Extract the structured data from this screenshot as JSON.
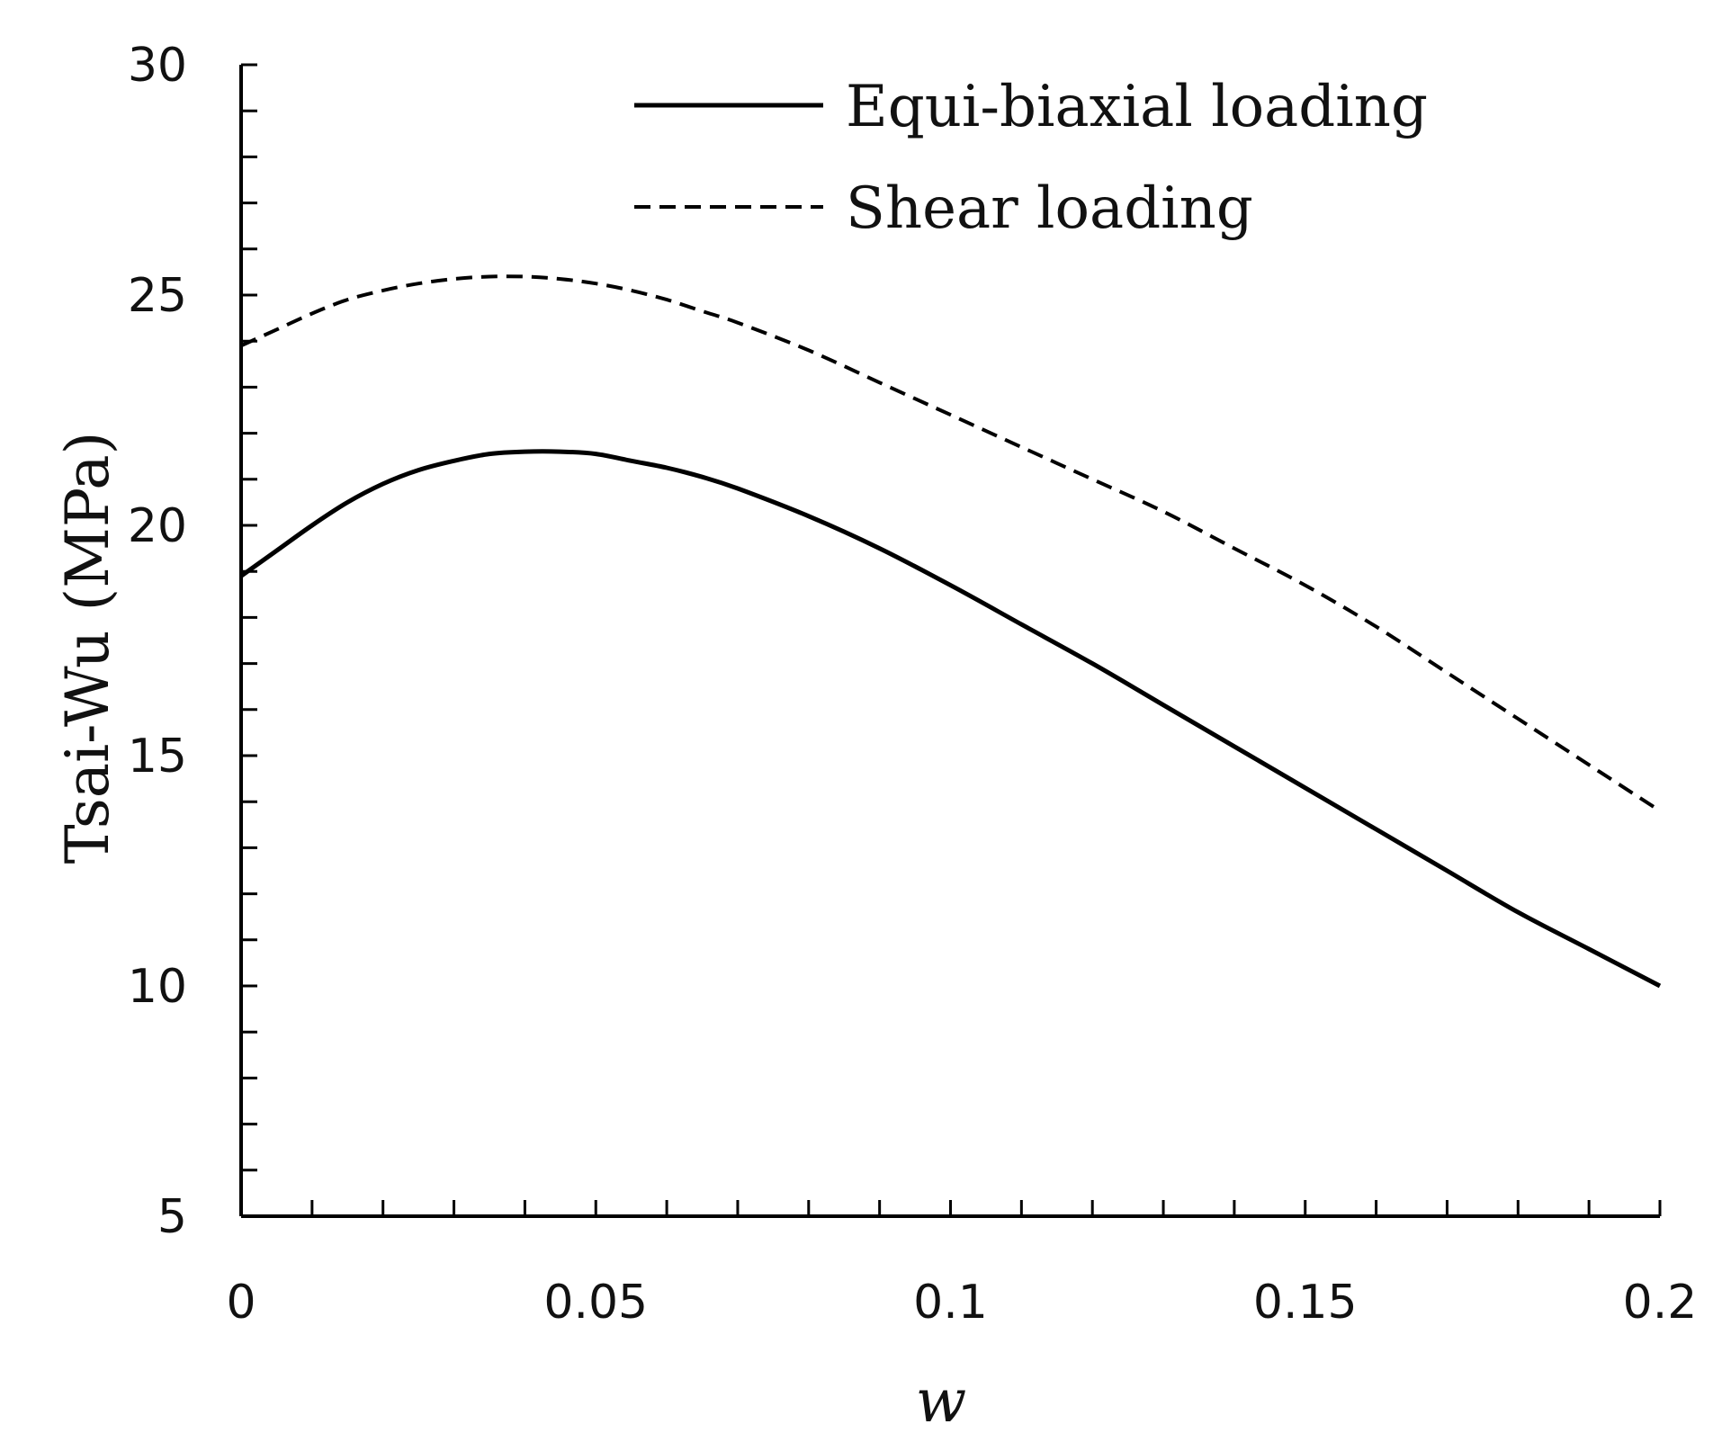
{
  "chart_data": {
    "type": "line",
    "xlabel": "w",
    "ylabel": "Tsai-Wu (MPa)",
    "xlim": [
      0,
      0.2
    ],
    "ylim": [
      5,
      30
    ],
    "x_ticks": [
      "0",
      "0.05",
      "0.1",
      "0.15",
      "0.2"
    ],
    "y_ticks": [
      "5",
      "10",
      "15",
      "20",
      "25",
      "30"
    ],
    "x_tick_values": [
      0,
      0.05,
      0.1,
      0.15,
      0.2
    ],
    "y_tick_values": [
      5,
      10,
      15,
      20,
      25,
      30
    ],
    "x_minor_step": 0.01,
    "y_minor_step": 1,
    "grid": false,
    "legend_position": "top-right",
    "series": [
      {
        "name": "Equi-biaxial loading",
        "style": "solid",
        "color": "#000000",
        "x": [
          0,
          0.005,
          0.01,
          0.015,
          0.02,
          0.025,
          0.03,
          0.035,
          0.04,
          0.045,
          0.05,
          0.055,
          0.06,
          0.065,
          0.07,
          0.08,
          0.09,
          0.1,
          0.11,
          0.12,
          0.13,
          0.14,
          0.15,
          0.16,
          0.17,
          0.18,
          0.19,
          0.2
        ],
        "values": [
          18.9,
          19.45,
          20.0,
          20.5,
          20.9,
          21.2,
          21.4,
          21.55,
          21.6,
          21.6,
          21.55,
          21.4,
          21.25,
          21.05,
          20.8,
          20.2,
          19.5,
          18.7,
          17.85,
          17.0,
          16.1,
          15.2,
          14.3,
          13.4,
          12.5,
          11.6,
          10.8,
          10.0
        ]
      },
      {
        "name": "Shear loading",
        "style": "dashed",
        "color": "#000000",
        "x": [
          0,
          0.005,
          0.01,
          0.015,
          0.02,
          0.025,
          0.03,
          0.035,
          0.04,
          0.045,
          0.05,
          0.055,
          0.06,
          0.065,
          0.07,
          0.08,
          0.09,
          0.1,
          0.11,
          0.12,
          0.13,
          0.14,
          0.15,
          0.16,
          0.17,
          0.18,
          0.19,
          0.2
        ],
        "values": [
          23.9,
          24.25,
          24.6,
          24.9,
          25.1,
          25.25,
          25.35,
          25.4,
          25.4,
          25.35,
          25.25,
          25.1,
          24.9,
          24.65,
          24.4,
          23.8,
          23.1,
          22.4,
          21.7,
          21.0,
          20.3,
          19.5,
          18.7,
          17.8,
          16.8,
          15.8,
          14.8,
          13.8
        ]
      }
    ]
  }
}
